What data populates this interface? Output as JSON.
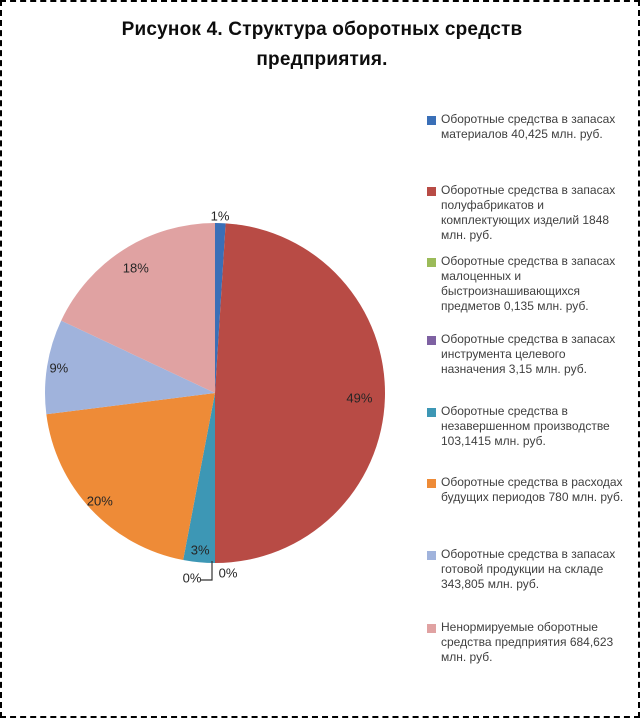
{
  "figure": {
    "title": "Рисунок 4. Структура оборотных средств предприятия."
  },
  "chart_data": {
    "type": "pie",
    "title": "Рисунок 4. Структура оборотных средств предприятия.",
    "legend_position": "right",
    "direction": "clockwise",
    "start_angle_deg": 0,
    "slices": [
      {
        "label": "Оборотные средства в запасах материалов 40,425 млн. руб.",
        "value_mln_rub": 40.425,
        "percent": 1,
        "percent_label": "1%",
        "color": "#3A6FB7"
      },
      {
        "label": "Оборотные средства в запасах полуфабрикатов и комплектующих изделий 1848 млн. руб.",
        "value_mln_rub": 1848,
        "percent": 49,
        "percent_label": "49%",
        "color": "#B84B45"
      },
      {
        "label": "Оборотные средства в запасах малоценных и быстроизнашивающихся предметов 0,135 млн. руб.",
        "value_mln_rub": 0.135,
        "percent": 0,
        "percent_label": "0%",
        "color": "#9BBB59"
      },
      {
        "label": "Оборотные средства в запасах инструмента целевого назначения 3,15 млн. руб.",
        "value_mln_rub": 3.15,
        "percent": 0,
        "percent_label": "0%",
        "color": "#7E61A2"
      },
      {
        "label": "Оборотные средства в незавершенном производстве 103,1415 млн. руб.",
        "value_mln_rub": 103.1415,
        "percent": 3,
        "percent_label": "3%",
        "color": "#3D97B5"
      },
      {
        "label": "Оборотные средства в расходах будущих периодов 780 млн. руб.",
        "value_mln_rub": 780,
        "percent": 20,
        "percent_label": "20%",
        "color": "#EE8B37"
      },
      {
        "label": "Оборотные средства в запасах готовой продукции на складе 343,805 млн. руб.",
        "value_mln_rub": 343.805,
        "percent": 9,
        "percent_label": "9%",
        "color": "#A0B3DC"
      },
      {
        "label": "Ненормируемые оборотные средства предприятия 684,623 млн. руб.",
        "value_mln_rub": 684.623,
        "percent": 18,
        "percent_label": "18%",
        "color": "#E0A2A2"
      }
    ]
  }
}
